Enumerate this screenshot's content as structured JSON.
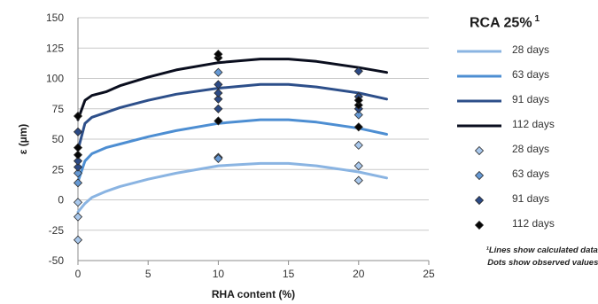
{
  "chart_data": {
    "type": "scatter",
    "title": "RCA 25%",
    "title_superscript": "1",
    "xlabel": "RHA content (%)",
    "ylabel": "ε (µm)",
    "xlim": [
      0,
      25
    ],
    "ylim": [
      -50,
      150
    ],
    "xticks": [
      0,
      5,
      10,
      15,
      20,
      25
    ],
    "yticks": [
      -50,
      -25,
      0,
      25,
      50,
      75,
      100,
      125,
      150
    ],
    "grid": "horizontal",
    "legend_position": "right",
    "line_series": [
      {
        "name": "28 days",
        "color": "#8ab4e2",
        "x": [
          0,
          0.5,
          1,
          2,
          3,
          5,
          7,
          10,
          13,
          15,
          17,
          20,
          22
        ],
        "y": [
          -10,
          -3,
          2,
          7,
          11,
          17,
          22,
          28,
          30,
          30,
          28,
          23,
          18
        ]
      },
      {
        "name": "63 days",
        "color": "#4d8ed2",
        "x": [
          0,
          0.5,
          1,
          2,
          3,
          5,
          7,
          10,
          13,
          15,
          17,
          20,
          22
        ],
        "y": [
          15,
          32,
          38,
          43,
          46,
          52,
          57,
          63,
          66,
          66,
          64,
          59,
          54
        ]
      },
      {
        "name": "91 days",
        "color": "#2d4f8a",
        "x": [
          0,
          0.5,
          1,
          2,
          3,
          5,
          7,
          10,
          13,
          15,
          17,
          20,
          22
        ],
        "y": [
          41,
          63,
          68,
          72,
          76,
          82,
          87,
          92,
          95,
          95,
          93,
          88,
          83
        ]
      },
      {
        "name": "112 days",
        "color": "#0a0e1e",
        "x": [
          0,
          0.5,
          1,
          2,
          3,
          5,
          7,
          10,
          13,
          15,
          17,
          20,
          22
        ],
        "y": [
          66,
          82,
          86,
          89,
          94,
          101,
          107,
          113,
          116,
          116,
          114,
          109,
          105
        ]
      }
    ],
    "point_series": [
      {
        "name": "28 days",
        "color": "#a9c8ec",
        "x": [
          0,
          0,
          0,
          10,
          20,
          20,
          20
        ],
        "y": [
          -33,
          -14,
          -2,
          35,
          16,
          28,
          45
        ]
      },
      {
        "name": "63 days",
        "color": "#6699d4",
        "x": [
          0,
          0,
          10,
          10,
          20
        ],
        "y": [
          14,
          22,
          34,
          105,
          70
        ]
      },
      {
        "name": "91 days",
        "color": "#2c4a85",
        "x": [
          0,
          0,
          0,
          10,
          10,
          10,
          10,
          20,
          20,
          20
        ],
        "y": [
          27,
          32,
          56,
          75,
          83,
          88,
          95,
          75,
          85,
          106
        ]
      },
      {
        "name": "112 days",
        "color": "#050505",
        "x": [
          0,
          0,
          0,
          10,
          10,
          10,
          20,
          20,
          20
        ],
        "y": [
          37,
          43,
          69,
          65,
          117,
          120,
          60,
          78,
          82
        ]
      }
    ],
    "footnote": [
      "¹Lines show calculated data;",
      "Dots show observed values."
    ]
  }
}
